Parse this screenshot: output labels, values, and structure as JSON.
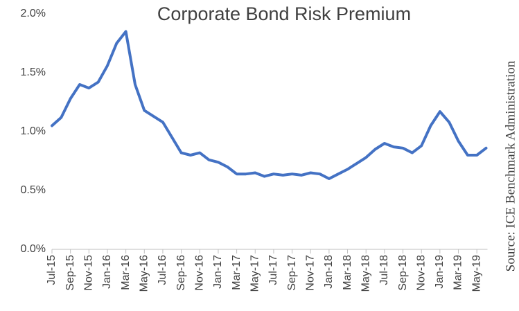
{
  "chart_data": {
    "type": "line",
    "title": "Corporate Bond Risk Premium",
    "source": "Source: ICE Benchmark Administration",
    "categories": [
      "Jul-15",
      null,
      "Sep-15",
      null,
      "Nov-15",
      null,
      "Jan-16",
      null,
      "Mar-16",
      null,
      "May-16",
      null,
      "Jul-16",
      null,
      "Sep-16",
      null,
      "Nov-16",
      null,
      "Jan-17",
      null,
      "Mar-17",
      null,
      "May-17",
      null,
      "Jul-17",
      null,
      "Sep-17",
      null,
      "Nov-17",
      null,
      "Jan-18",
      null,
      "Mar-18",
      null,
      "May-18",
      null,
      "Jul-18",
      null,
      "Sep-18",
      null,
      "Nov-18",
      null,
      "Jan-19",
      null,
      "Mar-19",
      null,
      "May-19",
      null
    ],
    "series": [
      {
        "name": "Corporate Bond Risk Premium",
        "color": "#4472c4",
        "values": [
          1.05,
          1.12,
          1.28,
          1.4,
          1.37,
          1.42,
          1.56,
          1.75,
          1.85,
          1.4,
          1.18,
          1.13,
          1.08,
          0.95,
          0.82,
          0.8,
          0.82,
          0.76,
          0.74,
          0.7,
          0.64,
          0.64,
          0.65,
          0.62,
          0.64,
          0.63,
          0.64,
          0.63,
          0.65,
          0.64,
          0.6,
          0.64,
          0.68,
          0.73,
          0.78,
          0.85,
          0.9,
          0.87,
          0.86,
          0.82,
          0.88,
          1.05,
          1.17,
          1.08,
          0.92,
          0.8,
          0.8,
          0.86
        ]
      }
    ],
    "ylim": [
      0,
      2.0
    ],
    "yticks": [
      {
        "value": 0,
        "label": "0.0%"
      },
      {
        "value": 0.5,
        "label": "0.5%"
      },
      {
        "value": 1.0,
        "label": "1.0%"
      },
      {
        "value": 1.5,
        "label": "1.5%"
      },
      {
        "value": 2.0,
        "label": "2.0%"
      }
    ]
  }
}
